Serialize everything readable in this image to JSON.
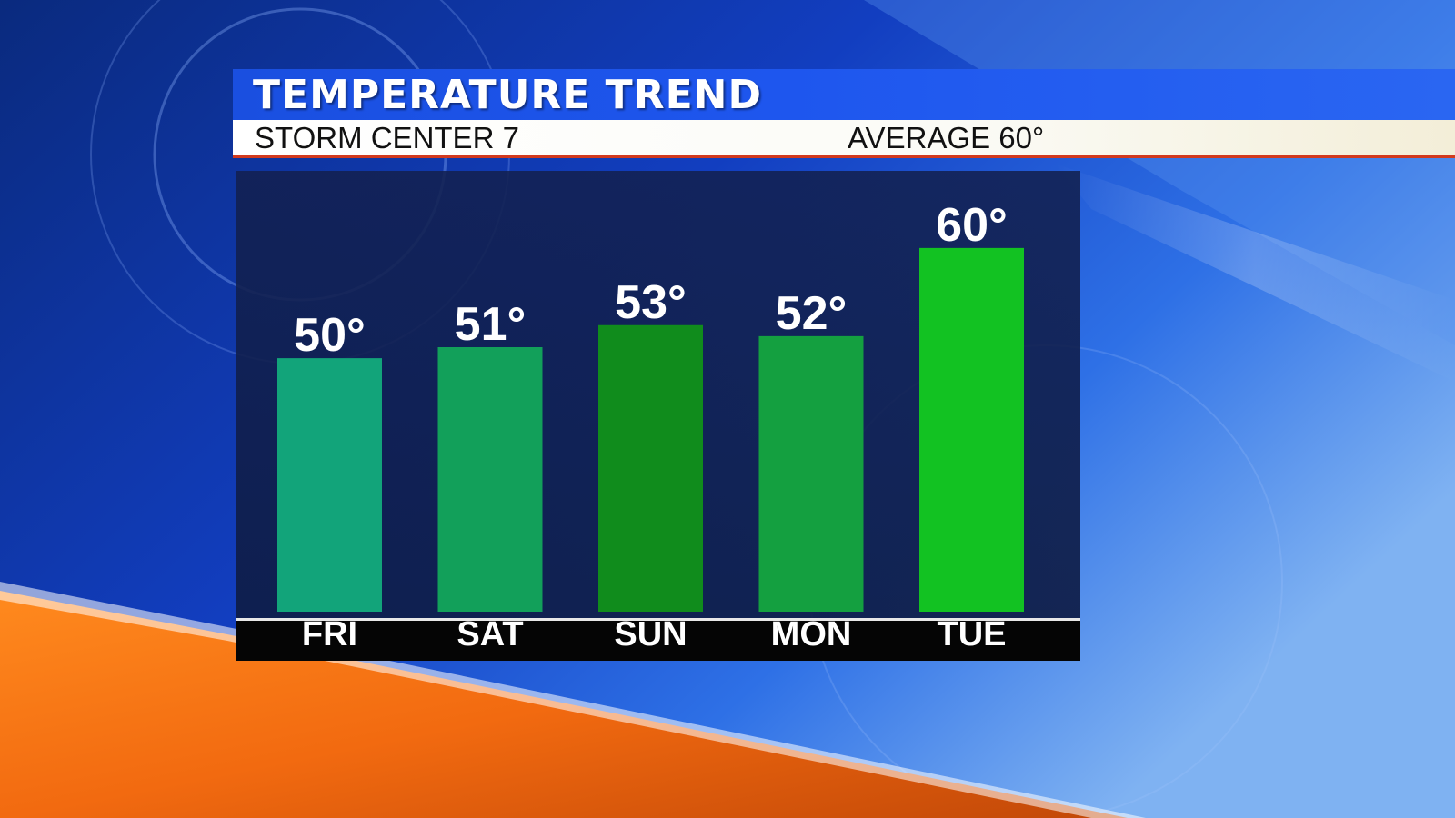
{
  "header": {
    "title": "TEMPERATURE TREND",
    "station": "STORM CENTER 7",
    "average": "AVERAGE 60°"
  },
  "colors": {
    "title_bar": "#1e56ee",
    "subtitle_stripe": "#d23a1e",
    "bars": [
      "#12a47a",
      "#12a05a",
      "#108c1c",
      "#14a040",
      "#12c222"
    ]
  },
  "chart_data": {
    "type": "bar",
    "categories": [
      "FRI",
      "SAT",
      "SUN",
      "MON",
      "TUE"
    ],
    "values": [
      50,
      51,
      53,
      52,
      60
    ],
    "value_labels": [
      "50°",
      "51°",
      "53°",
      "52°",
      "60°"
    ],
    "title": "TEMPERATURE TREND",
    "xlabel": "",
    "ylabel": "",
    "ylim": [
      27,
      67
    ],
    "grid": false,
    "legend": "none"
  }
}
